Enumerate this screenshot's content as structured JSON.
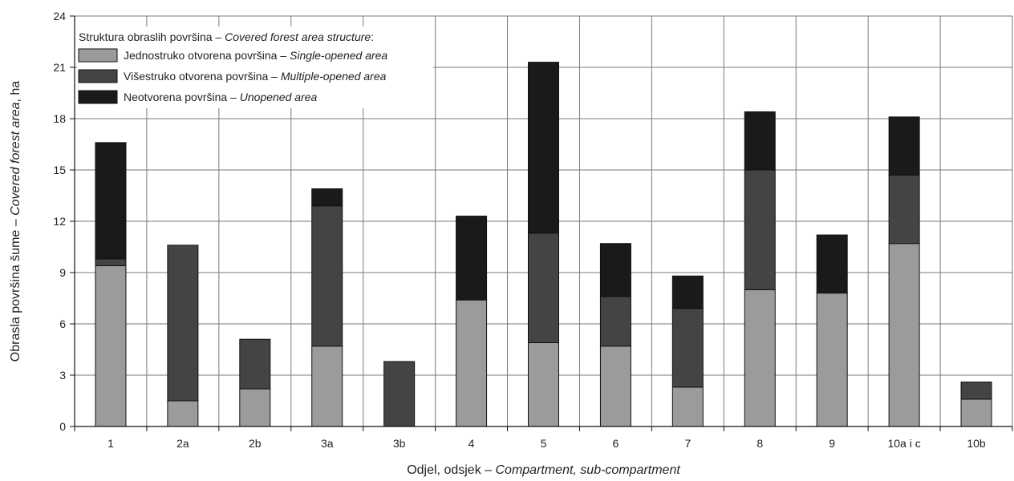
{
  "chart_data": {
    "type": "bar",
    "stacked": true,
    "categories": [
      "1",
      "2a",
      "2b",
      "3a",
      "3b",
      "4",
      "5",
      "6",
      "7",
      "8",
      "9",
      "10a i c",
      "10b"
    ],
    "series": [
      {
        "name": "Jednostruko otvorena površina – Single-opened area",
        "name_plain": "Jednostruko otvorena površina – ",
        "name_italic": "Single-opened area",
        "color": "#9b9b9b",
        "values": [
          9.4,
          1.5,
          2.2,
          4.7,
          0,
          7.4,
          4.9,
          4.7,
          2.3,
          8.0,
          7.8,
          10.7,
          1.6
        ]
      },
      {
        "name": "Višestruko otvorena površina – Multiple-opened area",
        "name_plain": "Višestruko otvorena površina  – ",
        "name_italic": "Multiple-opened area",
        "color": "#444444",
        "values": [
          0.4,
          9.1,
          2.9,
          8.2,
          3.8,
          0,
          6.4,
          2.9,
          4.6,
          7.0,
          0,
          4.0,
          1.0
        ]
      },
      {
        "name": "Neotvorena površina – Unopened area",
        "name_plain": "Neotvorena površina – ",
        "name_italic": "Unopened area",
        "color": "#1a1a1a",
        "values": [
          6.8,
          0,
          0,
          1.0,
          0,
          4.9,
          10.0,
          3.1,
          1.9,
          3.4,
          3.4,
          3.4,
          0
        ]
      }
    ],
    "ylim": [
      0,
      24
    ],
    "yticks": [
      0,
      3,
      6,
      9,
      12,
      15,
      18,
      21,
      24
    ],
    "grid": true,
    "legend_position": "top-left",
    "legend_title_plain": "Struktura obraslih površina – ",
    "legend_title_italic": "Covered forest area structure",
    "legend_title_suffix": ":",
    "xlabel_plain": "Odjel, odsjek  – ",
    "xlabel_italic": "Compartment, sub-compartment",
    "ylabel_plain": "Obrasla površina šume – ",
    "ylabel_italic": "Covered forest area",
    "ylabel_suffix": ", ha"
  }
}
